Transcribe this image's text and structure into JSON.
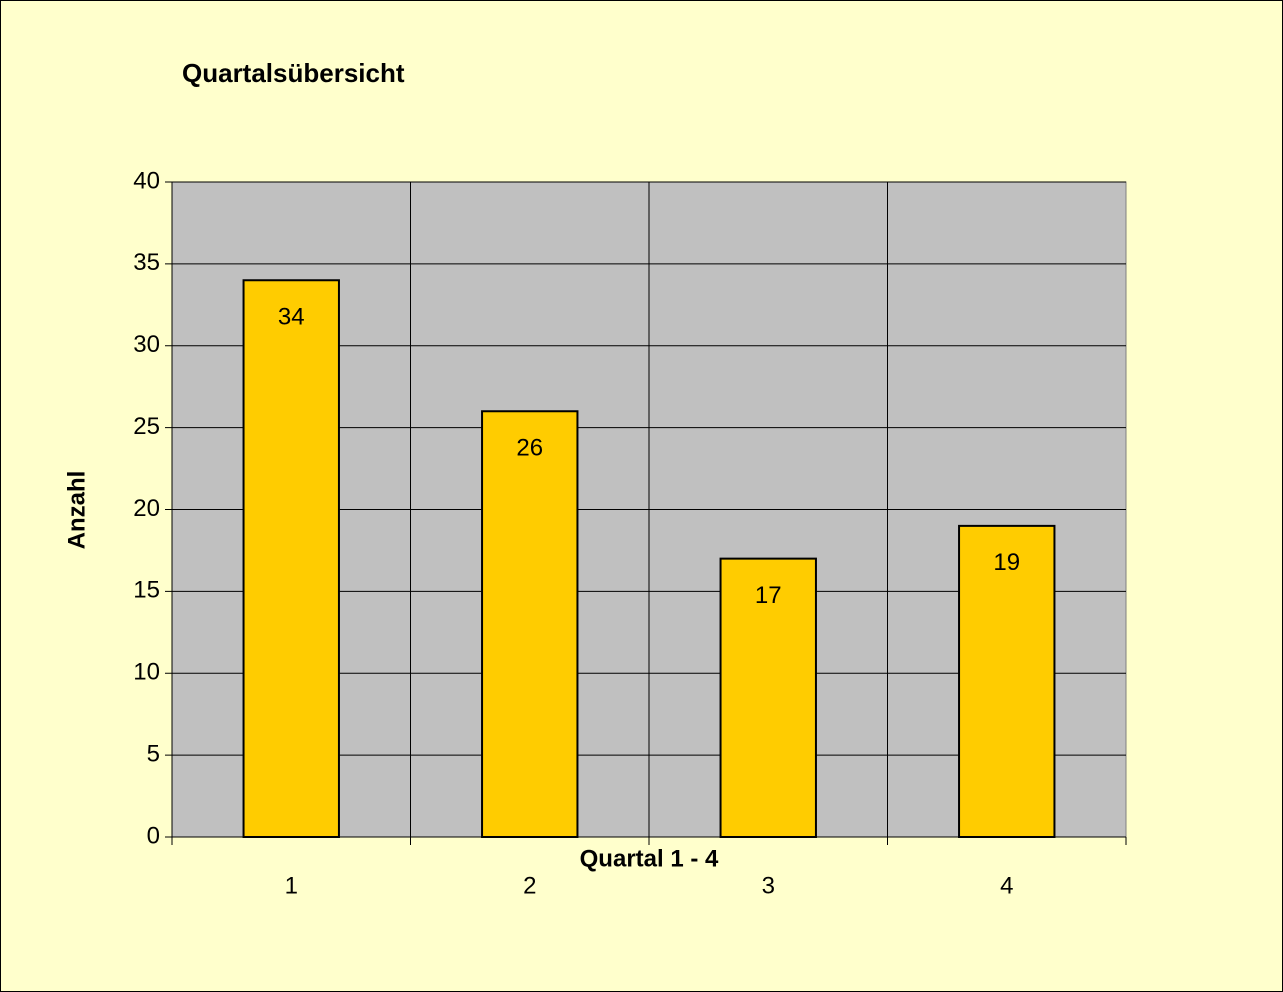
{
  "chart_data": {
    "type": "bar",
    "title": "Quartalsübersicht",
    "x_label": "Quartal 1 - 4",
    "y_label": "Anzahl",
    "categories": [
      "1",
      "2",
      "3",
      "4"
    ],
    "values": [
      34,
      26,
      17,
      19
    ],
    "color": "#ffcc00",
    "ylim": [
      0,
      40
    ],
    "yticks": [
      0,
      5,
      10,
      15,
      20,
      25,
      30,
      35,
      40
    ],
    "grid": true,
    "data_labels": true
  }
}
